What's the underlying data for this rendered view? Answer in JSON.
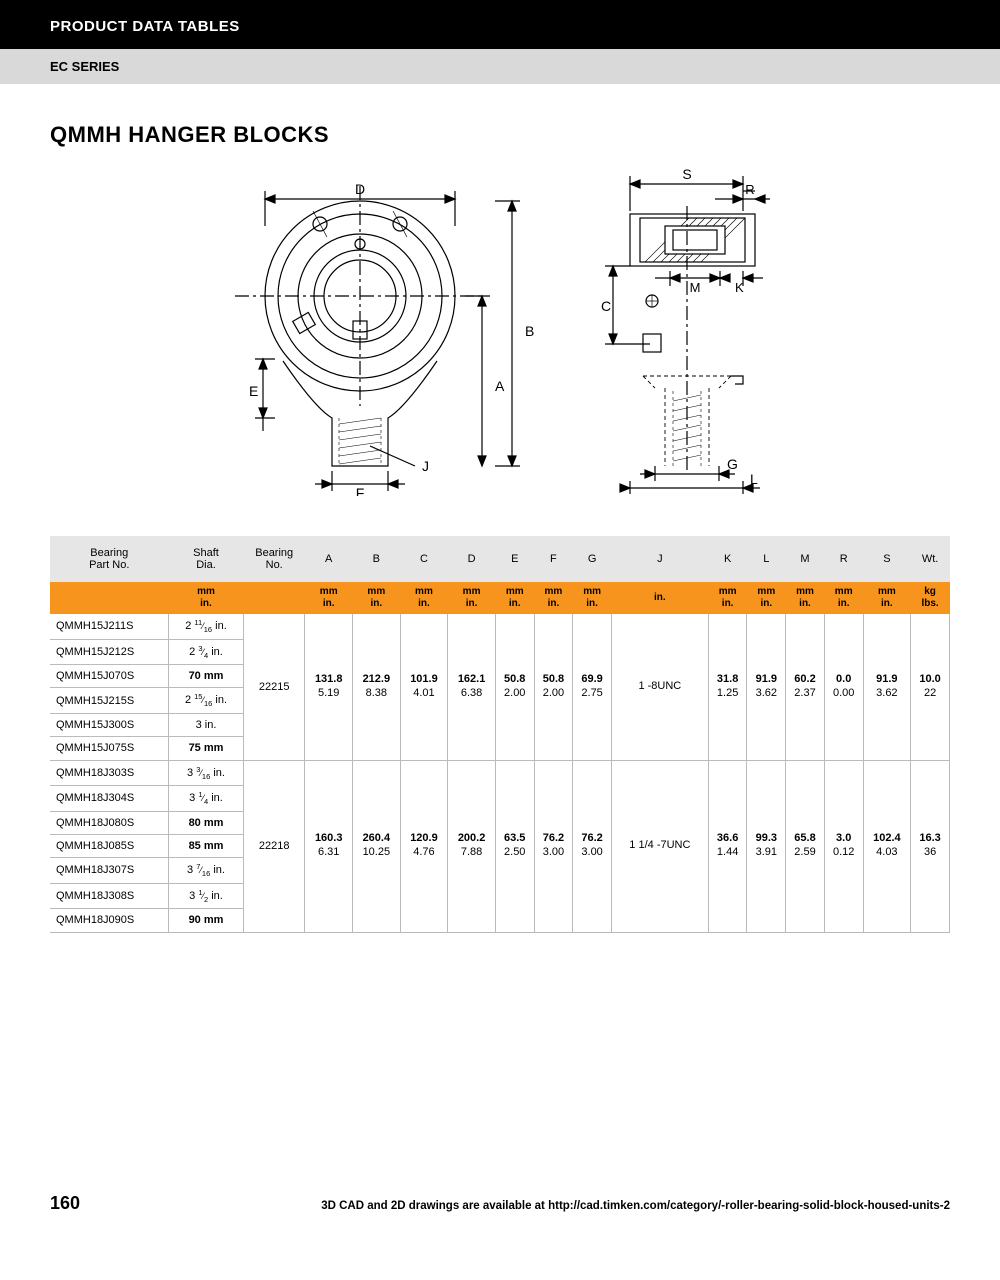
{
  "header": {
    "black": "PRODUCT DATA TABLES",
    "gray": "EC SERIES"
  },
  "title": "QMMH HANGER BLOCKS",
  "diagram": {
    "labels": [
      "A",
      "B",
      "C",
      "D",
      "E",
      "F",
      "G",
      "J",
      "K",
      "L",
      "M",
      "R",
      "S"
    ]
  },
  "table": {
    "columns": [
      "Bearing\nPart No.",
      "Shaft\nDia.",
      "Bearing\nNo.",
      "A",
      "B",
      "C",
      "D",
      "E",
      "F",
      "G",
      "J",
      "K",
      "L",
      "M",
      "R",
      "S",
      "Wt."
    ],
    "units_row": [
      "",
      "mm\nin.",
      "",
      "mm\nin.",
      "mm\nin.",
      "mm\nin.",
      "mm\nin.",
      "mm\nin.",
      "mm\nin.",
      "mm\nin.",
      "in.",
      "mm\nin.",
      "mm\nin.",
      "mm\nin.",
      "mm\nin.",
      "mm\nin.",
      "kg\nlbs."
    ],
    "groups": [
      {
        "bearing_no": "22215",
        "parts": [
          {
            "no": "QMMH15J211S",
            "shaft": "2 11/16 in.",
            "bold": false
          },
          {
            "no": "QMMH15J212S",
            "shaft": "2 3/4 in.",
            "bold": false
          },
          {
            "no": "QMMH15J070S",
            "shaft": "70 mm",
            "bold": true
          },
          {
            "no": "QMMH15J215S",
            "shaft": "2 15/16 in.",
            "bold": false
          },
          {
            "no": "QMMH15J300S",
            "shaft": "3 in.",
            "bold": false
          },
          {
            "no": "QMMH15J075S",
            "shaft": "75 mm",
            "bold": true
          }
        ],
        "dims": {
          "A": [
            "131.8",
            "5.19"
          ],
          "B": [
            "212.9",
            "8.38"
          ],
          "C": [
            "101.9",
            "4.01"
          ],
          "D": [
            "162.1",
            "6.38"
          ],
          "E": [
            "50.8",
            "2.00"
          ],
          "F": [
            "50.8",
            "2.00"
          ],
          "G": [
            "69.9",
            "2.75"
          ],
          "J": [
            "1 -8UNC"
          ],
          "K": [
            "31.8",
            "1.25"
          ],
          "L": [
            "91.9",
            "3.62"
          ],
          "M": [
            "60.2",
            "2.37"
          ],
          "R": [
            "0.0",
            "0.00"
          ],
          "S": [
            "91.9",
            "3.62"
          ],
          "Wt": [
            "10.0",
            "22"
          ]
        }
      },
      {
        "bearing_no": "22218",
        "parts": [
          {
            "no": "QMMH18J303S",
            "shaft": "3 3/16 in.",
            "bold": false
          },
          {
            "no": "QMMH18J304S",
            "shaft": "3 1/4 in.",
            "bold": false
          },
          {
            "no": "QMMH18J080S",
            "shaft": "80 mm",
            "bold": true
          },
          {
            "no": "QMMH18J085S",
            "shaft": "85 mm",
            "bold": true
          },
          {
            "no": "QMMH18J307S",
            "shaft": "3 7/16 in.",
            "bold": false
          },
          {
            "no": "QMMH18J308S",
            "shaft": "3 1/2 in.",
            "bold": false
          },
          {
            "no": "QMMH18J090S",
            "shaft": "90 mm",
            "bold": true
          }
        ],
        "dims": {
          "A": [
            "160.3",
            "6.31"
          ],
          "B": [
            "260.4",
            "10.25"
          ],
          "C": [
            "120.9",
            "4.76"
          ],
          "D": [
            "200.2",
            "7.88"
          ],
          "E": [
            "63.5",
            "2.50"
          ],
          "F": [
            "76.2",
            "3.00"
          ],
          "G": [
            "76.2",
            "3.00"
          ],
          "J": [
            "1 1/4 -7UNC"
          ],
          "K": [
            "36.6",
            "1.44"
          ],
          "L": [
            "99.3",
            "3.91"
          ],
          "M": [
            "65.8",
            "2.59"
          ],
          "R": [
            "3.0",
            "0.12"
          ],
          "S": [
            "102.4",
            "4.03"
          ],
          "Wt": [
            "16.3",
            "36"
          ]
        }
      }
    ]
  },
  "footer": {
    "page": "160",
    "note": "3D CAD and 2D drawings are available at http://cad.timken.com/category/-roller-bearing-solid-block-housed-units-2"
  },
  "colors": {
    "orange": "#f7941e",
    "gray_header": "#e6e6e6",
    "gray_band": "#d9d9d9",
    "border": "#bbbbbb"
  }
}
